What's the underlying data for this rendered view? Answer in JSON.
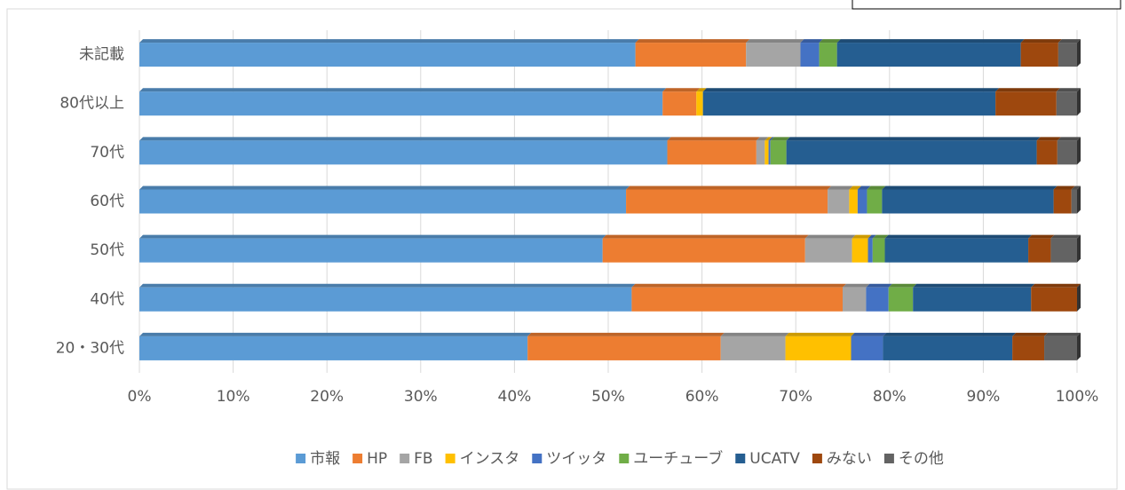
{
  "chart_data": {
    "type": "stacked-bar-horizontal",
    "categories": [
      "20・30代",
      "40代",
      "50代",
      "60代",
      "70代",
      "80代以上",
      "未記載"
    ],
    "series": [
      {
        "name": "市報",
        "color": "#5b9bd5",
        "values": [
          41.4,
          52.5,
          49.4,
          51.9,
          56.3,
          55.8,
          52.9
        ]
      },
      {
        "name": "HP",
        "color": "#ed7d31",
        "values": [
          20.6,
          22.5,
          21.6,
          21.5,
          9.5,
          3.6,
          11.8
        ]
      },
      {
        "name": "FB",
        "color": "#a5a5a5",
        "values": [
          6.9,
          2.5,
          5.0,
          2.3,
          0.9,
          0,
          5.8
        ]
      },
      {
        "name": "インスタ",
        "color": "#ffc000",
        "values": [
          7.0,
          0,
          1.7,
          0.9,
          0.4,
          0.7,
          0
        ]
      },
      {
        "name": "ツイッタ",
        "color": "#4472c4",
        "values": [
          3.4,
          2.4,
          0.5,
          1.0,
          0.2,
          0,
          2.0
        ]
      },
      {
        "name": "ユーチューブ",
        "color": "#70ad47",
        "values": [
          0,
          2.6,
          1.3,
          1.6,
          1.7,
          0,
          1.9
        ]
      },
      {
        "name": "UCATV",
        "color": "#255e91",
        "values": [
          13.8,
          12.6,
          15.3,
          18.3,
          26.7,
          31.2,
          19.6
        ]
      },
      {
        "name": "みない",
        "color": "#9e480e",
        "values": [
          3.4,
          4.9,
          2.4,
          1.9,
          2.2,
          6.5,
          4.0
        ]
      },
      {
        "name": "その他",
        "color": "#636363",
        "values": [
          3.5,
          0,
          2.8,
          0.6,
          2.1,
          2.2,
          2.0
        ]
      }
    ],
    "xlim": [
      0,
      100
    ],
    "xticks": [
      {
        "value": 0,
        "label": "0%"
      },
      {
        "value": 10,
        "label": "10%"
      },
      {
        "value": 20,
        "label": "20%"
      },
      {
        "value": 30,
        "label": "30%"
      },
      {
        "value": 40,
        "label": "40%"
      },
      {
        "value": 50,
        "label": "50%"
      },
      {
        "value": 60,
        "label": "60%"
      },
      {
        "value": 70,
        "label": "70%"
      },
      {
        "value": 80,
        "label": "80%"
      },
      {
        "value": 90,
        "label": "90%"
      },
      {
        "value": 100,
        "label": "100%"
      }
    ],
    "grid": true,
    "legend": "bottom"
  }
}
